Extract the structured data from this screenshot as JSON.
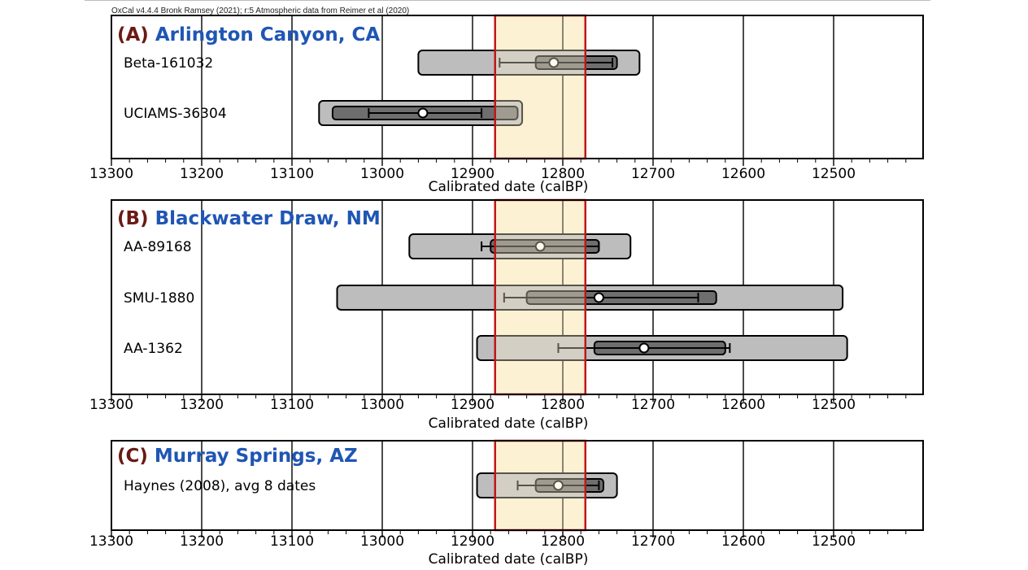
{
  "credit": "OxCal v4.4.4 Bronk Ramsey (2021); r:5 Atmospheric data from Reimer et al (2020)",
  "colors": {
    "highlight_fill": "#fdf2d3",
    "highlight_border": "#c0171b",
    "outer_range": "#bdbdbd",
    "inner_range": "#6e6e6e",
    "overlap_fill": "#8d7e62",
    "panel_letter": "#6b1a14",
    "panel_name": "#1f56b4"
  },
  "chart_data": [
    {
      "type": "range",
      "panel_letter": "(A)",
      "panel_name": "Arlington Canyon, CA",
      "xlabel": "Calibrated date (calBP)",
      "xlim": [
        13300,
        12400
      ],
      "ticks": [
        13300,
        13200,
        13100,
        13000,
        12900,
        12800,
        12700,
        12600,
        12500
      ],
      "highlight": [
        12875,
        12775
      ],
      "samples": [
        {
          "label": "Beta-161032",
          "outer": [
            12960,
            12715
          ],
          "inner": [
            12830,
            12740
          ],
          "whisker": [
            12870,
            12745
          ],
          "mean": 12810
        },
        {
          "label": "UCIAMS-36304",
          "outer": [
            13070,
            12845
          ],
          "inner": [
            13055,
            12850
          ],
          "whisker": [
            13015,
            12890
          ],
          "mean": 12955
        }
      ]
    },
    {
      "type": "range",
      "panel_letter": "(B)",
      "panel_name": "Blackwater Draw, NM",
      "xlabel": "Calibrated date (calBP)",
      "xlim": [
        13300,
        12400
      ],
      "ticks": [
        13300,
        13200,
        13100,
        13000,
        12900,
        12800,
        12700,
        12600,
        12500
      ],
      "highlight": [
        12875,
        12775
      ],
      "samples": [
        {
          "label": "AA-89168",
          "outer": [
            12970,
            12725
          ],
          "inner": [
            12880,
            12760
          ],
          "whisker": [
            12890,
            12760
          ],
          "mean": 12825
        },
        {
          "label": "SMU-1880",
          "outer": [
            13050,
            12490
          ],
          "inner": [
            12840,
            12630
          ],
          "whisker": [
            12865,
            12650
          ],
          "mean": 12760
        },
        {
          "label": "AA-1362",
          "outer": [
            12895,
            12485
          ],
          "inner": [
            12765,
            12620
          ],
          "whisker": [
            12805,
            12615
          ],
          "mean": 12710
        }
      ]
    },
    {
      "type": "range",
      "panel_letter": "(C)",
      "panel_name": "Murray Springs, AZ",
      "xlabel": "Calibrated date (calBP)",
      "xlim": [
        13300,
        12400
      ],
      "ticks": [
        13300,
        13200,
        13100,
        13000,
        12900,
        12800,
        12700,
        12600,
        12500
      ],
      "highlight": [
        12875,
        12775
      ],
      "samples": [
        {
          "label": "Haynes (2008), avg 8 dates",
          "outer": [
            12895,
            12740
          ],
          "inner": [
            12830,
            12755
          ],
          "whisker": [
            12850,
            12760
          ],
          "mean": 12805
        }
      ]
    }
  ]
}
